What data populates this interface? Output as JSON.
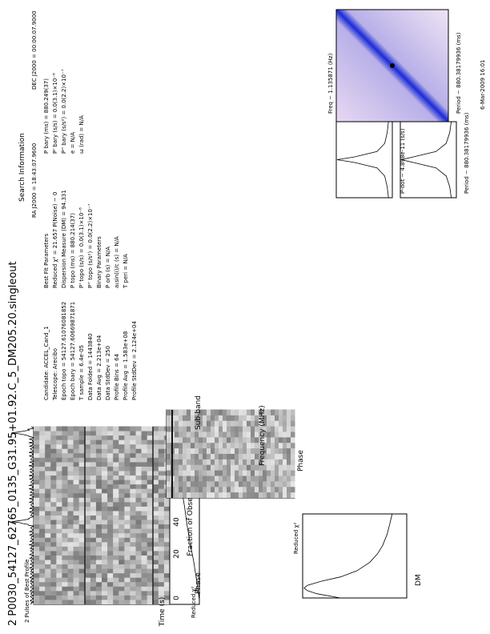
{
  "title": "2 P0030_54127_62765_0135_G31.95+01.92.C_5_DM205.20.singleout",
  "footer": {
    "date": "6-Mar-2009 16:01"
  },
  "panels": {
    "profile": {
      "label": "2 Pulses of Best Profile"
    },
    "time_phase": {
      "ylabel": "Time (s)",
      "xlabel": "Phase",
      "yticks": [
        "0",
        "20",
        "40",
        "60",
        "80"
      ],
      "xticks": [
        "0",
        "0.5",
        "1",
        "1.5"
      ]
    },
    "redchi_obs": {
      "xlabel": "Reduced χ²",
      "ylabel_top": "Fraction of Observation",
      "xticks": [
        "0",
        "5",
        "10",
        "15",
        "20"
      ],
      "topticks": [
        "0",
        "0.2",
        "0.4",
        "0.6",
        "0.8",
        "1"
      ]
    },
    "subband": {
      "ylabel": "Sub-band",
      "ytop": "Frequency (MHz)",
      "xlabel": "Phase",
      "yticks": [
        "0",
        "10",
        "20",
        "30"
      ],
      "ftick": [
        "1400",
        "1420",
        "1440",
        "1460",
        "1480"
      ],
      "xticks": [
        "0",
        "0.2",
        "0.4",
        "0.6",
        "0.8",
        "1"
      ]
    },
    "dm_chi": {
      "xlabel": "DM",
      "ylabel": "Reduced χ²",
      "xticks": [
        "0",
        "200",
        "400",
        "600",
        "800"
      ],
      "yticks": [
        "0",
        "5",
        "10",
        "15",
        "20"
      ]
    },
    "pdot_chi": {
      "xlabel": "P-dot − 4.898e-11 (s/s)",
      "ylabel": "Reduced χ²",
      "xticks": [
        "-5×10⁻⁸",
        "0",
        "5×10⁻⁸"
      ],
      "yticks": [
        "0",
        "5",
        "10",
        "15",
        "20"
      ]
    },
    "period_chi": {
      "xlabel": "Period − 880.38179936 (ms)",
      "ylabel": "Reduced χ²",
      "xticks": [
        "-5",
        "0",
        "5"
      ],
      "yticks": [
        "0",
        "5",
        "10",
        "15",
        "20"
      ]
    },
    "ppdot": {
      "xlabel": "Period − 880.38179936 (ms)",
      "ylabel": "P-dot − 4.898e-11 (s/s)",
      "toplabel": "Freq − 1.135871 (Hz)",
      "rightlabel": "F-dot + 6.3198e-11 (Hz)"
    }
  },
  "info": {
    "header": "Search Information",
    "ra": "RA J2000 = 18:43:07.9600",
    "dec": "DEC J2000 = 00:00:07.9000",
    "left": [
      "Candidate:  ACCEL_Cand_1",
      "Telescope:  Arecibo",
      "Epoch topo = 54127.61076081852",
      "Epoch bary = 54127.60669871871",
      "T sample  = 6.4e-05",
      "Data Folded = 1443840",
      "Data Avg   = 2.213e+04",
      "Data StdDev = 250",
      "Profile Bins = 64",
      "Profile Avg  = 1.583e+08",
      "Profile StdDev = 2.124e+04"
    ],
    "mid": [
      "Best Fit Parameters",
      "Reduced χ² = 21.657   P(Noise) ~ 0",
      "Dispersion Measure (DM) = 94.331",
      "P topo (ms) = 880.214(37)",
      "P' topo (s/s) = 0.0(3.1)×10⁻⁸",
      "P'' topo (s/s²) = 0.0(2.2)×10⁻⁷",
      "Binary Parameters",
      "P orb (s) = N/A",
      "a₁sin(i)/c (s) = N/A",
      "T peri = N/A"
    ],
    "right": [
      "P bary (ms) = 880.249(37)",
      "P' bary (s/s) = 0.0(3.1)×10⁻⁸",
      "P'' bary (s/s²) = 0.0(2.2)×10⁻⁷",
      "e = N/A",
      "ω (rad) = N/A"
    ]
  },
  "chart_data": [
    {
      "type": "line",
      "title": "2 Pulses of Best Profile",
      "xlabel": "Phase",
      "ylabel": "",
      "x_range": [
        0,
        2
      ],
      "peaks_at_phase": [
        0.93,
        1.93
      ]
    },
    {
      "type": "heatmap",
      "title": "",
      "xlabel": "Phase",
      "ylabel": "Time (s)",
      "xlim": [
        0,
        2
      ],
      "ylim": [
        0,
        90
      ],
      "colormap": "grayscale",
      "pulse_track_phase": [
        0.93,
        1.93
      ]
    },
    {
      "type": "line",
      "title": "",
      "xlabel": "Reduced χ²",
      "ylabel": "Fraction of Observation",
      "xlim": [
        0,
        20
      ],
      "ylim": [
        0,
        1
      ],
      "x": [
        0.5,
        2,
        3.5,
        5,
        7,
        9,
        11,
        13,
        15,
        17,
        19,
        20.5
      ],
      "y": [
        0,
        0.06,
        0.13,
        0.2,
        0.32,
        0.42,
        0.5,
        0.6,
        0.7,
        0.8,
        0.92,
        1.0
      ]
    },
    {
      "type": "heatmap",
      "title": "",
      "xlabel": "Phase",
      "ylabel": "Sub-band",
      "xlim": [
        0,
        1
      ],
      "ylim": [
        0,
        32
      ],
      "colormap": "grayscale",
      "secondary_axis": "Frequency (MHz)",
      "pulse_track_phase": 0.93
    },
    {
      "type": "line",
      "title": "",
      "xlabel": "DM",
      "ylabel": "Reduced χ²",
      "xlim": [
        0,
        800
      ],
      "ylim": [
        0,
        22
      ],
      "x": [
        0,
        40,
        70,
        94,
        120,
        160,
        200,
        260,
        340,
        420,
        500,
        600,
        700,
        800
      ],
      "y": [
        14,
        19,
        21,
        21.7,
        21,
        18,
        14,
        10.5,
        7.8,
        6.2,
        5.1,
        4.2,
        3.6,
        3.1
      ]
    },
    {
      "type": "line",
      "title": "",
      "xlabel": "P-dot − 4.898e-11 (s/s)",
      "ylabel": "Reduced χ²",
      "xlim": [
        -7e-08,
        7e-08
      ],
      "ylim": [
        0,
        22
      ],
      "x": [
        -7e-08,
        -5e-08,
        -3e-08,
        -1.5e-08,
        -5e-09,
        0,
        5e-09,
        1.5e-08,
        3e-08,
        5e-08,
        7e-08
      ],
      "y": [
        1.5,
        2,
        3,
        6,
        15,
        21.7,
        15,
        6,
        3,
        2,
        1.5
      ]
    },
    {
      "type": "line",
      "title": "",
      "xlabel": "Period − 880.38179936 (ms)",
      "ylabel": "Reduced χ²",
      "xlim": [
        -7,
        7
      ],
      "ylim": [
        0,
        22
      ],
      "x": [
        -7,
        -5,
        -3,
        -1.5,
        -0.5,
        0,
        0.5,
        1.5,
        3,
        5,
        7
      ],
      "y": [
        2,
        2.6,
        4,
        8,
        17,
        21.7,
        17,
        8,
        4,
        2.6,
        2
      ]
    },
    {
      "type": "heatmap",
      "title": "",
      "xlabel": "Period − 880.38179936 (ms)",
      "ylabel": "P-dot − 4.898e-11 (s/s)",
      "xlim": [
        -0.01,
        0.01
      ],
      "ylim": [
        -7e-08,
        7e-08
      ],
      "colormap": "blue-white",
      "best_point": [
        0,
        0
      ]
    }
  ]
}
